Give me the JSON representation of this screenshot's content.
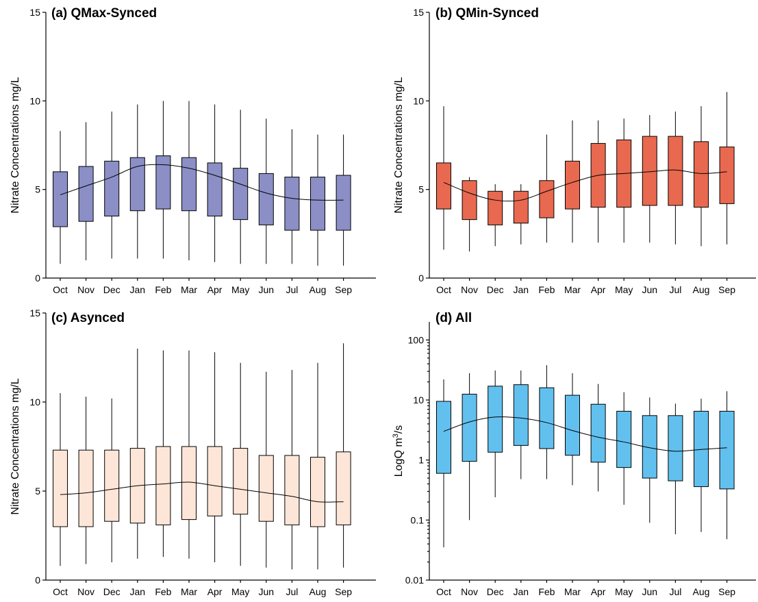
{
  "chart_data": [
    {
      "id": "a",
      "type": "box",
      "title": "(a) QMax-Synced",
      "ylabel": "Nitrate Concentrations mg/L",
      "ylabel_sup": "",
      "ylabel_tail": "",
      "scale": "linear",
      "ylim": [
        0,
        15
      ],
      "yticks": [
        0,
        5,
        10,
        15
      ],
      "ytick_labels": [
        "0",
        "5",
        "10",
        "15"
      ],
      "fill_color": "#8b8fc6",
      "categories": [
        "Oct",
        "Nov",
        "Dec",
        "Jan",
        "Feb",
        "Mar",
        "Apr",
        "May",
        "Jun",
        "Jul",
        "Aug",
        "Sep"
      ],
      "whisker_low": [
        0.8,
        1.0,
        1.1,
        1.1,
        1.1,
        1.0,
        0.9,
        0.8,
        0.8,
        0.8,
        0.7,
        0.7
      ],
      "q1": [
        2.9,
        3.2,
        3.5,
        3.8,
        3.9,
        3.8,
        3.5,
        3.3,
        3.0,
        2.7,
        2.7,
        2.7
      ],
      "q3": [
        6.0,
        6.3,
        6.6,
        6.8,
        6.9,
        6.8,
        6.5,
        6.2,
        5.9,
        5.7,
        5.7,
        5.8
      ],
      "whisker_high": [
        8.3,
        8.8,
        9.4,
        9.8,
        10.0,
        10.0,
        9.8,
        9.5,
        9.0,
        8.4,
        8.1,
        8.1
      ],
      "trend": [
        4.7,
        5.2,
        5.7,
        6.3,
        6.4,
        6.2,
        5.8,
        5.3,
        4.8,
        4.5,
        4.4,
        4.4
      ]
    },
    {
      "id": "b",
      "type": "box",
      "title": "(b) QMin-Synced",
      "ylabel": "Nitrate Concentrations mg/L",
      "ylabel_sup": "",
      "ylabel_tail": "",
      "scale": "linear",
      "ylim": [
        0,
        15
      ],
      "yticks": [
        0,
        5,
        10,
        15
      ],
      "ytick_labels": [
        "0",
        "5",
        "10",
        "15"
      ],
      "fill_color": "#e8694f",
      "categories": [
        "Oct",
        "Nov",
        "Dec",
        "Jan",
        "Feb",
        "Mar",
        "Apr",
        "May",
        "Jun",
        "Jul",
        "Aug",
        "Sep"
      ],
      "whisker_low": [
        1.6,
        1.5,
        1.8,
        1.9,
        2.0,
        2.0,
        2.0,
        2.0,
        2.0,
        1.9,
        1.8,
        1.9
      ],
      "q1": [
        3.9,
        3.3,
        3.0,
        3.1,
        3.4,
        3.9,
        4.0,
        4.0,
        4.1,
        4.1,
        4.0,
        4.2
      ],
      "q3": [
        6.5,
        5.5,
        4.9,
        4.9,
        5.5,
        6.6,
        7.6,
        7.8,
        8.0,
        8.0,
        7.7,
        7.4
      ],
      "whisker_high": [
        9.7,
        5.7,
        5.3,
        5.3,
        8.1,
        8.9,
        8.9,
        9.0,
        9.2,
        9.4,
        9.7,
        10.5
      ],
      "trend": [
        5.4,
        4.8,
        4.4,
        4.4,
        4.9,
        5.4,
        5.8,
        5.9,
        6.0,
        6.1,
        5.9,
        6.0
      ]
    },
    {
      "id": "c",
      "type": "box",
      "title": "(c) Asynced",
      "ylabel": "Nitrate Concentrations mg/L",
      "ylabel_sup": "",
      "ylabel_tail": "",
      "scale": "linear",
      "ylim": [
        0,
        15
      ],
      "yticks": [
        0,
        5,
        10,
        15
      ],
      "ytick_labels": [
        "0",
        "5",
        "10",
        "15"
      ],
      "fill_color": "#fde6d8",
      "categories": [
        "Oct",
        "Nov",
        "Dec",
        "Jan",
        "Feb",
        "Mar",
        "Apr",
        "May",
        "Jun",
        "Jul",
        "Aug",
        "Sep"
      ],
      "whisker_low": [
        0.8,
        0.9,
        1.0,
        1.2,
        1.3,
        1.2,
        1.0,
        0.8,
        0.7,
        0.6,
        0.6,
        0.7
      ],
      "q1": [
        3.0,
        3.0,
        3.3,
        3.2,
        3.1,
        3.4,
        3.6,
        3.7,
        3.3,
        3.1,
        3.0,
        3.1
      ],
      "q3": [
        7.3,
        7.3,
        7.3,
        7.4,
        7.5,
        7.5,
        7.5,
        7.4,
        7.0,
        7.0,
        6.9,
        7.2
      ],
      "whisker_high": [
        10.5,
        10.3,
        10.2,
        13.0,
        12.9,
        12.9,
        12.8,
        12.2,
        11.7,
        11.8,
        12.2,
        13.3
      ],
      "trend": [
        4.8,
        4.9,
        5.1,
        5.3,
        5.4,
        5.5,
        5.3,
        5.1,
        4.9,
        4.7,
        4.4,
        4.4
      ]
    },
    {
      "id": "d",
      "type": "box",
      "title": "(d) All",
      "ylabel": "LogQ m",
      "ylabel_sup": "3",
      "ylabel_tail": "/s",
      "scale": "log",
      "ylim": [
        0.01,
        200
      ],
      "yticks": [
        0.01,
        0.1,
        1,
        10,
        100
      ],
      "ytick_labels": [
        "0.01",
        "0.1",
        "1",
        "10",
        "100"
      ],
      "fill_color": "#62c0ee",
      "categories": [
        "Oct",
        "Nov",
        "Dec",
        "Jan",
        "Feb",
        "Mar",
        "Apr",
        "May",
        "Jun",
        "Jul",
        "Aug",
        "Sep"
      ],
      "whisker_low": [
        0.035,
        0.1,
        0.24,
        0.48,
        0.48,
        0.38,
        0.3,
        0.18,
        0.09,
        0.058,
        0.063,
        0.048
      ],
      "q1": [
        0.6,
        0.95,
        1.35,
        1.75,
        1.55,
        1.2,
        0.92,
        0.75,
        0.5,
        0.45,
        0.36,
        0.33
      ],
      "q3": [
        9.5,
        12.5,
        17,
        18,
        16,
        12,
        8.5,
        6.5,
        5.5,
        5.5,
        6.5,
        6.5
      ],
      "whisker_high": [
        22,
        28,
        31,
        31,
        38,
        28,
        18.5,
        13.5,
        11,
        8.7,
        10.5,
        14
      ],
      "trend": [
        3.0,
        4.3,
        5.2,
        5.0,
        4.2,
        3.1,
        2.4,
        2.0,
        1.6,
        1.4,
        1.5,
        1.6
      ]
    }
  ]
}
